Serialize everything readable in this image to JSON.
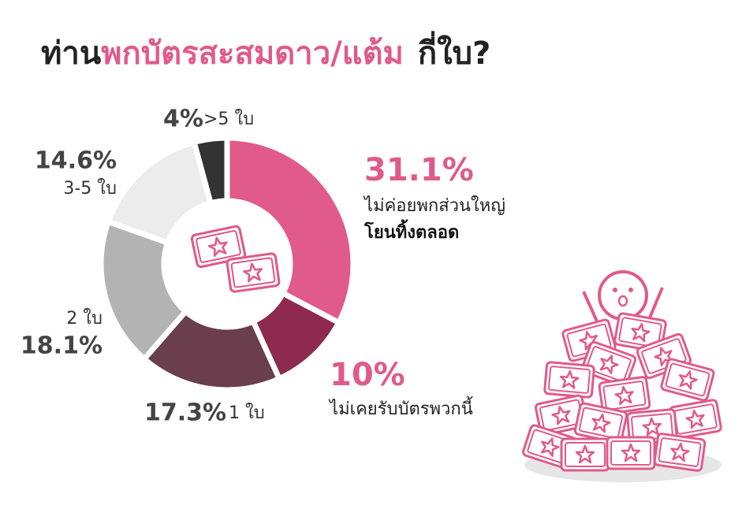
{
  "chart_data": {
    "type": "donut",
    "title": [
      "ท่าน",
      "พกบัตรสะสมดาว/แต้ม",
      "กี่ใบ?"
    ],
    "categories": [
      [
        "ไม่ค่อยพกส่วนใหญ่",
        "โยนทิ้งตลอด"
      ],
      "ไม่เคยรับบัตรพวกนี้",
      "1 ใบ",
      "2 ใบ",
      "3-5 ใบ",
      ">5 ใบ"
    ],
    "values": [
      31.1,
      10,
      17.3,
      18.1,
      14.6,
      4
    ],
    "value_labels": [
      "31.1%",
      "10%",
      "17.3%",
      "18.1%",
      "14.6%",
      "4%"
    ],
    "colors": [
      "#e05a8a",
      "#8e2a4e",
      "#6a3e4c",
      "#b3b3b3",
      "#ececec",
      "#333333"
    ]
  }
}
